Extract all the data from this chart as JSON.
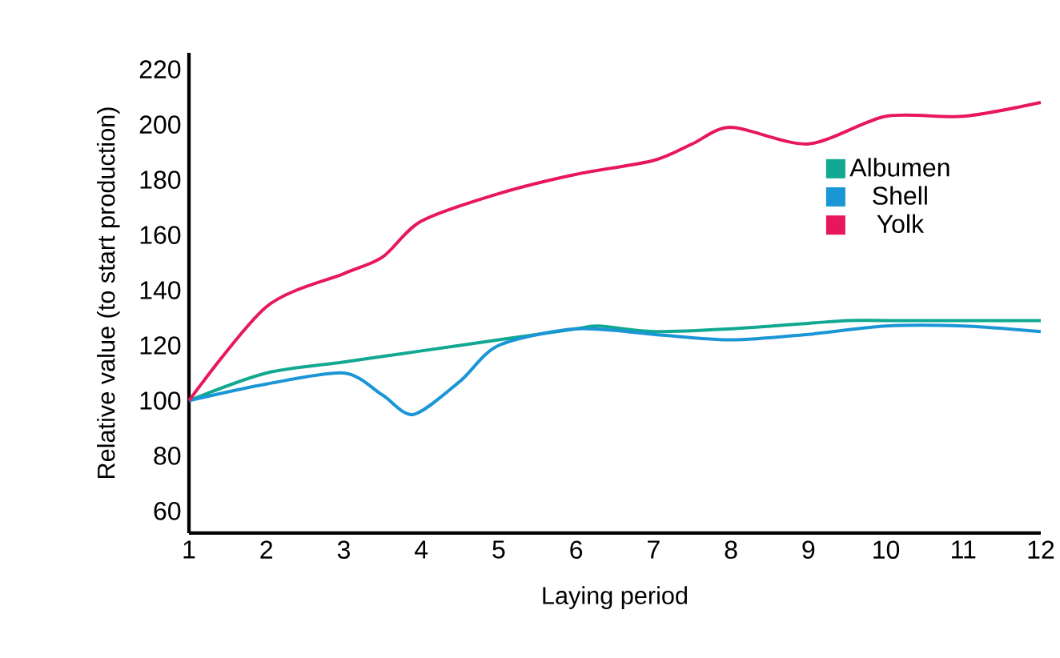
{
  "chart_data": {
    "type": "line",
    "xlabel": "Laying period",
    "ylabel": "Relative value (to start production)",
    "xlim": [
      1,
      12
    ],
    "xticks": [
      1,
      2,
      3,
      4,
      5,
      6,
      7,
      8,
      9,
      10,
      11,
      12
    ],
    "ylim": [
      52,
      226
    ],
    "yticks": [
      60,
      80,
      100,
      120,
      140,
      160,
      180,
      200,
      220
    ],
    "grid": false,
    "legend": "top right",
    "marker": "none",
    "line_style": "solid",
    "series": [
      {
        "name": "Albumen",
        "color": "#10a891",
        "x": [
          1,
          2,
          3,
          4,
          5,
          6,
          6.3,
          7,
          8,
          9,
          9.5,
          10,
          11,
          12
        ],
        "values": [
          100,
          110,
          114,
          118,
          122,
          126,
          127,
          125,
          126,
          128,
          129,
          129,
          129,
          129
        ]
      },
      {
        "name": "Shell",
        "color": "#1a96d6",
        "x": [
          1,
          2,
          3,
          3.5,
          3.9,
          4.5,
          5,
          6,
          7,
          8,
          9,
          10,
          11,
          12
        ],
        "values": [
          100,
          106,
          110,
          102,
          95,
          107,
          120,
          126,
          124,
          122,
          124,
          127,
          127,
          125
        ]
      },
      {
        "name": "Yolk",
        "color": "#e8175d",
        "x": [
          1,
          2,
          3,
          3.5,
          4,
          5,
          6,
          7,
          7.5,
          8,
          9,
          10,
          11,
          12
        ],
        "values": [
          100,
          134,
          146,
          152,
          165,
          175,
          182,
          187,
          193,
          199,
          193,
          203,
          203,
          208
        ]
      }
    ]
  }
}
